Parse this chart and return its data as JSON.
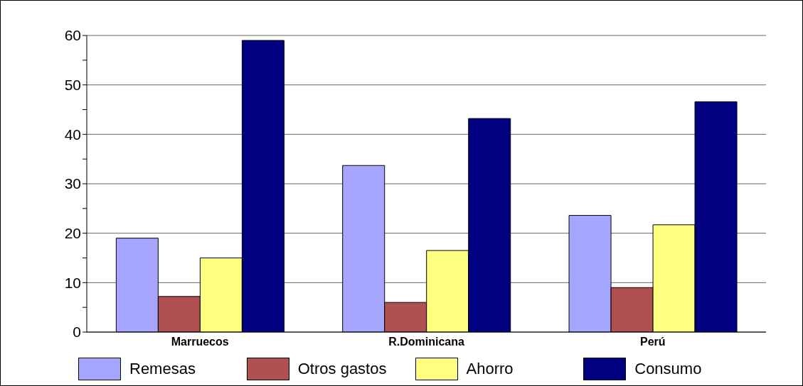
{
  "chart_data": {
    "type": "bar",
    "categories": [
      "Marruecos",
      "R.Dominicana",
      "Perú"
    ],
    "series": [
      {
        "name": "Remesas",
        "color": "#a6a6ff",
        "values": [
          19.0,
          33.7,
          23.6
        ]
      },
      {
        "name": "Otros gastos",
        "color": "#b05050",
        "values": [
          7.2,
          6.0,
          9.0
        ]
      },
      {
        "name": "Ahorro",
        "color": "#ffff80",
        "values": [
          15.0,
          16.5,
          21.7
        ]
      },
      {
        "name": "Consumo",
        "color": "#000080",
        "values": [
          59.0,
          43.2,
          46.6
        ]
      }
    ],
    "ylim": [
      0,
      60
    ],
    "yticks": [
      0,
      {
        "value": 5,
        "label": null
      },
      10,
      {
        "value": 15,
        "label": null
      },
      20,
      {
        "value": 25,
        "label": null
      },
      30,
      {
        "value": 35,
        "label": null
      },
      40,
      {
        "value": 45,
        "label": null
      },
      50,
      {
        "value": 55,
        "label": null
      },
      60
    ],
    "grid": "y",
    "legend": "bottom"
  }
}
